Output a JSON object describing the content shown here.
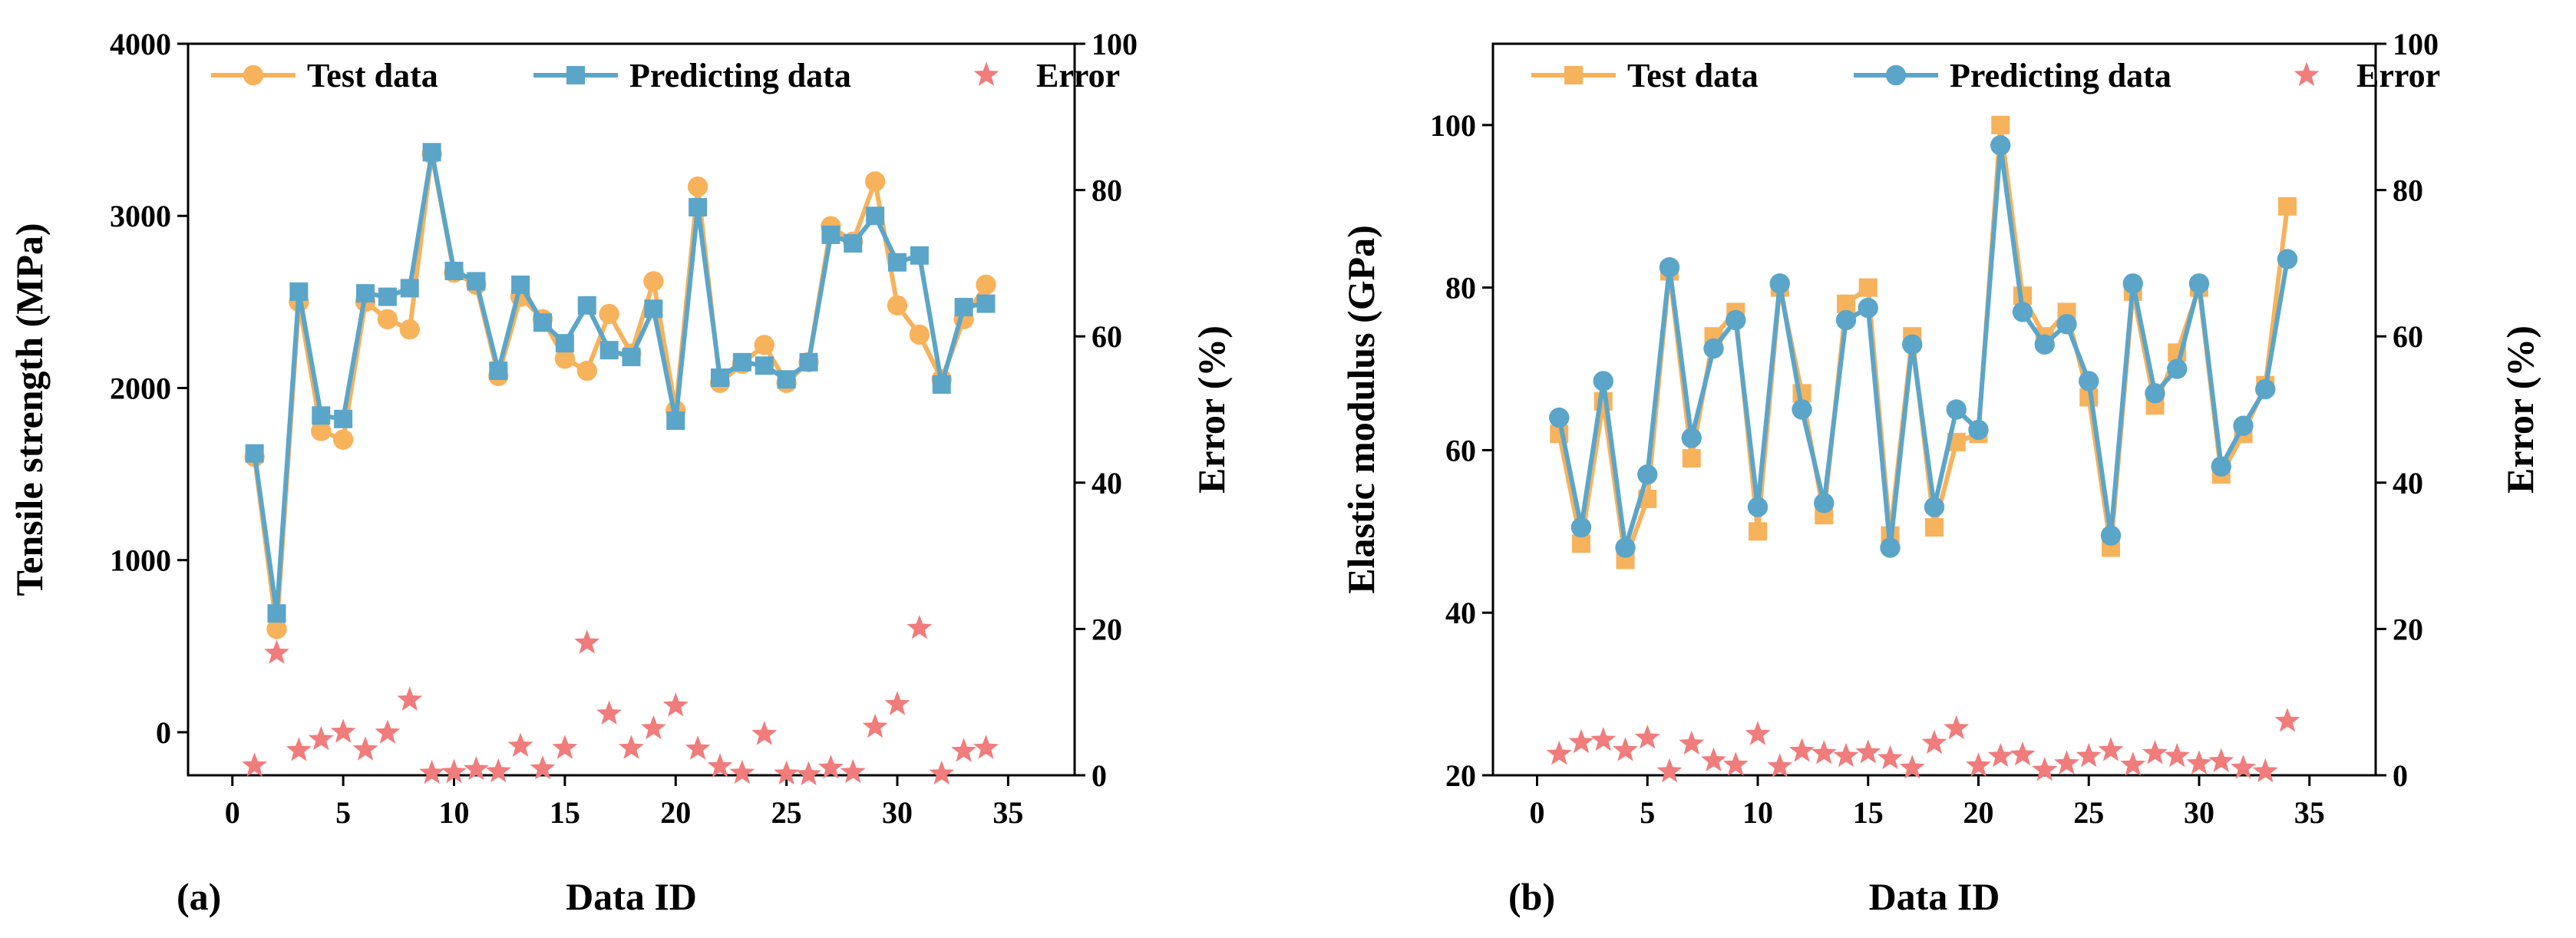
{
  "chart_data": [
    {
      "type": "line",
      "panel_label": "(a)",
      "xlabel": "Data ID",
      "ylabel": "Tensile strength (MPa)",
      "y2label": "Error (%)",
      "xlim": [
        -2,
        38
      ],
      "ylim": [
        -250,
        4000
      ],
      "y2lim": [
        0,
        100
      ],
      "xticks": [
        0,
        5,
        10,
        15,
        20,
        25,
        30,
        35
      ],
      "yticks": [
        0,
        1000,
        2000,
        3000,
        4000
      ],
      "y2ticks": [
        0,
        20,
        40,
        60,
        80,
        100
      ],
      "legend_position": "top",
      "x": [
        1,
        2,
        3,
        4,
        5,
        6,
        7,
        8,
        9,
        10,
        11,
        12,
        13,
        14,
        15,
        16,
        17,
        18,
        19,
        20,
        21,
        22,
        23,
        24,
        25,
        26,
        27,
        28,
        29,
        30,
        31,
        32,
        33,
        34
      ],
      "series": [
        {
          "name": "Test data",
          "axis": "left",
          "marker": "circle",
          "color": "#F7B25C",
          "values": [
            1600,
            600,
            2500,
            1750,
            1700,
            2500,
            2400,
            2340,
            3360,
            2670,
            2600,
            2070,
            2530,
            2400,
            2170,
            2100,
            2430,
            2200,
            2620,
            1870,
            3170,
            2030,
            2140,
            2250,
            2030,
            2150,
            2940,
            2850,
            3200,
            2480,
            2310,
            2050,
            2400,
            2600
          ]
        },
        {
          "name": "Predicting data",
          "axis": "left",
          "marker": "square",
          "color": "#5BA5C9",
          "values": [
            1620,
            690,
            2560,
            1840,
            1820,
            2550,
            2530,
            2580,
            3370,
            2680,
            2620,
            2100,
            2600,
            2380,
            2260,
            2480,
            2220,
            2180,
            2460,
            1810,
            3050,
            2060,
            2150,
            2130,
            2050,
            2150,
            2890,
            2840,
            3000,
            2730,
            2770,
            2020,
            2470,
            2490
          ]
        },
        {
          "name": "Error",
          "axis": "right",
          "marker": "star",
          "color": "#F07C7C",
          "values": [
            1.3,
            16.7,
            3.4,
            4.9,
            5.9,
            3.5,
            5.8,
            10.3,
            0.3,
            0.4,
            0.8,
            0.5,
            4.0,
            0.9,
            3.7,
            18.1,
            8.4,
            3.7,
            6.4,
            9.5,
            3.6,
            1.2,
            0.3,
            5.6,
            0.2,
            0.1,
            1.0,
            0.4,
            6.6,
            9.7,
            20.1,
            0.2,
            3.3,
            3.7
          ]
        }
      ]
    },
    {
      "type": "line",
      "panel_label": "(b)",
      "xlabel": "Data ID",
      "ylabel": "Elastic modulus (GPa)",
      "y2label": "Error (%)",
      "xlim": [
        -2,
        38
      ],
      "ylim": [
        20,
        110
      ],
      "y2lim": [
        0,
        100
      ],
      "xticks": [
        0,
        5,
        10,
        15,
        20,
        25,
        30,
        35
      ],
      "yticks": [
        20,
        40,
        60,
        80,
        100
      ],
      "y2ticks": [
        0,
        20,
        40,
        60,
        80,
        100
      ],
      "legend_position": "top",
      "x": [
        1,
        2,
        3,
        4,
        5,
        6,
        7,
        8,
        9,
        10,
        11,
        12,
        13,
        14,
        15,
        16,
        17,
        18,
        19,
        20,
        21,
        22,
        23,
        24,
        25,
        26,
        27,
        28,
        29,
        30,
        31,
        32,
        33,
        34
      ],
      "series": [
        {
          "name": "Test data",
          "axis": "left",
          "marker": "square",
          "color": "#F7B25C",
          "values": [
            62,
            48.5,
            66,
            46.5,
            54,
            82,
            59,
            74,
            77,
            50,
            80,
            67,
            52,
            78,
            80,
            49.5,
            74,
            50.5,
            61,
            62,
            100,
            79,
            74,
            77,
            66.5,
            48,
            79.5,
            65.5,
            72,
            80,
            57,
            62,
            68,
            90
          ]
        },
        {
          "name": "Predicting data",
          "axis": "left",
          "marker": "circle",
          "color": "#5BA5C9",
          "values": [
            64,
            50.5,
            68.5,
            48,
            57,
            82.5,
            61.5,
            72.5,
            76,
            53,
            80.5,
            65,
            53.5,
            76,
            77.5,
            48,
            73,
            53,
            65,
            62.5,
            97.5,
            77,
            73,
            75.5,
            68.5,
            49.5,
            80.5,
            67,
            70,
            80.5,
            58,
            63,
            67.5,
            83.5
          ]
        },
        {
          "name": "Error",
          "axis": "right",
          "marker": "star",
          "color": "#F07C7C",
          "values": [
            2.9,
            4.5,
            4.8,
            3.4,
            5.1,
            0.5,
            4.3,
            2.0,
            1.4,
            5.6,
            1.2,
            3.3,
            3.0,
            2.6,
            3.1,
            2.3,
            1.0,
            4.4,
            6.4,
            1.3,
            2.6,
            2.8,
            0.7,
            1.6,
            2.6,
            3.4,
            1.4,
            3.0,
            2.6,
            1.6,
            1.9,
            1.0,
            0.5,
            7.4
          ]
        }
      ]
    }
  ]
}
